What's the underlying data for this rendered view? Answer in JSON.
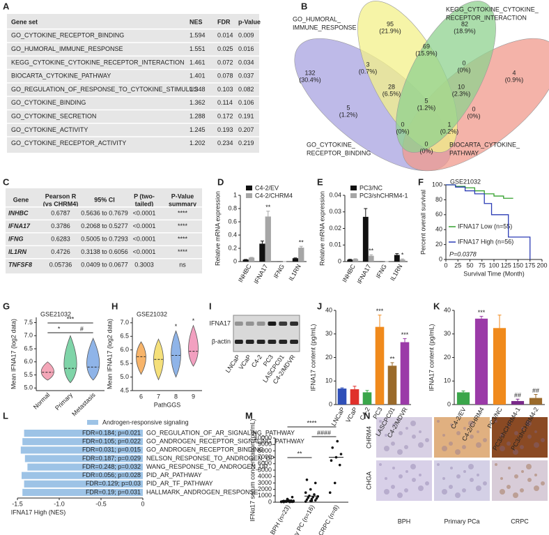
{
  "panels": [
    "A",
    "B",
    "C",
    "D",
    "E",
    "F",
    "G",
    "H",
    "I",
    "J",
    "K",
    "L",
    "M",
    "N"
  ],
  "table_a": {
    "panel": "A",
    "header": [
      "Gene set",
      "NES",
      "FDR",
      "p-Value"
    ],
    "rows": [
      [
        "GO_CYTOKINE_RECEPTOR_BINDING",
        "1.594",
        "0.014",
        "0.009"
      ],
      [
        "GO_HUMORAL_IMMUNE_RESPONSE",
        "1.551",
        "0.025",
        "0.016"
      ],
      [
        "KEGG_CYTOKINE_CYTOKINE_RECEPTOR_INTERACTION",
        "1.461",
        "0.072",
        "0.034"
      ],
      [
        "BIOCARTA_CYTOKINE_PATHWAY",
        "1.401",
        "0.078",
        "0.037"
      ],
      [
        "GO_REGULATION_OF_RESPONSE_TO_CYTOKINE_STIMULUS",
        "1.348",
        "0.103",
        "0.082"
      ],
      [
        "GO_CYTOKINE_BINDING",
        "1.362",
        "0.114",
        "0.106"
      ],
      [
        "GO_CYTOKINE_SECRETION",
        "1.288",
        "0.172",
        "0.191"
      ],
      [
        "GO_CYTOKINE_ACTIVITY",
        "1.245",
        "0.193",
        "0.207"
      ],
      [
        "GO_CYTOKINE_RECEPTOR_ACTIVITY",
        "1.202",
        "0.234",
        "0.219"
      ]
    ],
    "row_colors": [
      "#e4261c",
      "#e4261c",
      "#e4261c",
      "#e4261c",
      "#222222",
      "#222222",
      "#222222",
      "#222222",
      "#222222"
    ]
  },
  "venn_b": {
    "panel": "B",
    "sets": [
      {
        "lines": [
          "GO_HUMORAL_",
          "IMMUNE_RESPONSE"
        ],
        "color": "#f3f08a"
      },
      {
        "lines": [
          "KEGG_CYTOKINE_CYTOKINE_",
          "RECEPTOR_INTERACTION"
        ],
        "color": "#8fd18f"
      },
      {
        "lines": [
          "GO_CYTOKINE_",
          "RECEPTOR_BINDING"
        ],
        "color": "#a8a3e0"
      },
      {
        "lines": [
          "BIOCARTA_CYTOKINE_",
          "PATHWAY"
        ],
        "color": "#f09a8c"
      }
    ],
    "regions": [
      {
        "count": 95,
        "pct": "(21.9%)"
      },
      {
        "count": 82,
        "pct": "(18.9%)"
      },
      {
        "count": 132,
        "pct": "(30.4%)"
      },
      {
        "count": 4,
        "pct": "(0.9%)"
      },
      {
        "count": 69,
        "pct": "(15.9%)"
      },
      {
        "count": 3,
        "pct": "(0.7%)"
      },
      {
        "count": 0,
        "pct": "(0%)"
      },
      {
        "count": 28,
        "pct": "(6.5%)"
      },
      {
        "count": 10,
        "pct": "(2.3%)"
      },
      {
        "count": 5,
        "pct": "(1.2%)"
      },
      {
        "count": 5,
        "pct": "(1.2%)"
      },
      {
        "count": 0,
        "pct": "(0%)"
      },
      {
        "count": 1,
        "pct": "(0.2%)"
      },
      {
        "count": 0,
        "pct": "(0%)"
      },
      {
        "count": 0,
        "pct": "(0%)"
      }
    ]
  },
  "table_c": {
    "panel": "C",
    "header": [
      [
        "Gene"
      ],
      [
        "Pearson R",
        "(vs CHRM4)"
      ],
      [
        "95% CI"
      ],
      [
        "P (two-",
        "tailed)"
      ],
      [
        "P-Value",
        "summary"
      ]
    ],
    "rows": [
      [
        "INHBC",
        "0.6787",
        "0.5636 to 0.7679",
        "<0.0001",
        "****"
      ],
      [
        "IFNA17",
        "0.3786",
        "0.2068 to 0.5277",
        "<0.0001",
        "****"
      ],
      [
        "IFNG",
        "0.6283",
        "0.5005 to 0.7293",
        "<0.0001",
        "****"
      ],
      [
        "IL1RN",
        "0.4726",
        "0.3138 to 0.6056",
        "<0.0001",
        "****"
      ],
      [
        "TNFSF8",
        "0.05736",
        "0.0409 to 0.0677",
        "0.3003",
        "ns"
      ]
    ],
    "gene_colors": [
      "#e4261c",
      "#e4261c",
      "#e4261c",
      "#e4261c",
      "#222222"
    ]
  },
  "blot_i": {
    "panel": "I",
    "rows": [
      "IFNA17",
      "β-actin"
    ],
    "lanes": [
      "LNCaP",
      "VCaP",
      "C4-2",
      "PC3",
      "LASCPC01",
      "C4-2/MDVR"
    ]
  },
  "ihc_n": {
    "panel": "N",
    "rows": [
      "CHRM4",
      "CHGA"
    ],
    "columns": [
      "BPH",
      "Primary PCa",
      "CRPC"
    ]
  },
  "chart_data": [
    {
      "panel": "D",
      "type": "bar",
      "ylabel": "Relative mRNA expression",
      "categories": [
        "INHBC",
        "IFNA17",
        "IFNG",
        "IL1RN"
      ],
      "series": [
        {
          "name": "C4-2/EV",
          "color": "#111111",
          "values": [
            0.03,
            0.27,
            0,
            0.05
          ],
          "errors": [
            0.003,
            0.04,
            0,
            0.005
          ],
          "annotations": [
            null,
            null,
            null,
            null
          ]
        },
        {
          "name": "C4-2/CHRM4",
          "color": "#a6a6a6",
          "values": [
            0.06,
            0.68,
            0,
            0.21
          ],
          "errors": [
            0.004,
            0.08,
            0,
            0.02
          ],
          "annotations": [
            null,
            "**",
            null,
            "**"
          ]
        }
      ],
      "ylim": [
        0,
        1
      ],
      "yticks": [
        0,
        0.2,
        0.4,
        0.6,
        0.8,
        1
      ]
    },
    {
      "panel": "E",
      "type": "bar",
      "ylabel": "Relative mRNA expression",
      "categories": [
        "INHBC",
        "IFNA17",
        "IFNG",
        "IL1RN"
      ],
      "series": [
        {
          "name": "PC3/NC",
          "color": "#111111",
          "values": [
            0.0012,
            0.027,
            0,
            0.004
          ],
          "errors": [
            0.0002,
            0.005,
            0,
            0.0008
          ],
          "annotations": [
            null,
            null,
            null,
            null
          ]
        },
        {
          "name": "PC3/shCHRM4-1",
          "color": "#a6a6a6",
          "values": [
            0.0015,
            0.0035,
            0,
            0.0012
          ],
          "errors": [
            0.0002,
            0.0006,
            0,
            0.0004
          ],
          "annotations": [
            null,
            "**",
            null,
            "*"
          ]
        }
      ],
      "ylim": [
        0,
        0.04
      ],
      "yticks": [
        0,
        0.01,
        0.02,
        0.03,
        0.04
      ]
    },
    {
      "panel": "F",
      "type": "step",
      "title": "GSE21032",
      "xlabel": "Survival Time (Month)",
      "ylabel": "Percent overall survival",
      "annotation": "P=0.0378",
      "series": [
        {
          "name": "IFNA17 Low (n=55)",
          "color": "#33a02c",
          "x": [
            0,
            20,
            40,
            60,
            80,
            100,
            120,
            140
          ],
          "values": [
            100,
            98,
            96,
            92,
            88,
            85,
            82,
            82
          ]
        },
        {
          "name": "IFNA17 High (n=56)",
          "color": "#2b3bb5",
          "x": [
            0,
            20,
            40,
            60,
            80,
            95,
            130,
            175
          ],
          "values": [
            100,
            97,
            92,
            88,
            75,
            60,
            30,
            0
          ]
        }
      ],
      "xlim": [
        0,
        200
      ],
      "xticks": [
        0,
        25,
        50,
        75,
        100,
        125,
        150,
        175,
        200
      ],
      "ylim": [
        0,
        100
      ],
      "yticks": [
        0,
        20,
        40,
        60,
        80,
        100
      ]
    },
    {
      "panel": "G",
      "type": "violin",
      "title": "GSE21032",
      "ylabel": "Mean IFNA17 (log2 data)",
      "categories": [
        "Normal",
        "Primary",
        "Metastasis"
      ],
      "colors": [
        "#f4a6b8",
        "#7fd4a8",
        "#8fb4e8"
      ],
      "mins": [
        5.3,
        5.2,
        5.3
      ],
      "medians": [
        5.6,
        5.75,
        5.8
      ],
      "maxs": [
        6.0,
        7.0,
        6.9
      ],
      "comparisons": [
        {
          "from": "Normal",
          "to": "Primary",
          "label": "*"
        },
        {
          "from": "Primary",
          "to": "Metastasis",
          "label": "#"
        },
        {
          "from": "Normal",
          "to": "Metastasis",
          "label": "***"
        }
      ],
      "ylim": [
        4.9,
        7.7
      ],
      "yticks": [
        {
          "value": 5,
          "label": "5.0"
        },
        5.5,
        {
          "value": 6,
          "label": "6.0"
        },
        6.5,
        {
          "value": 7,
          "label": "7.0"
        },
        7.5
      ]
    },
    {
      "panel": "H",
      "type": "violin",
      "title": "GSE21032",
      "ylabel": "Mean IFNA17 (log2 data)",
      "xlabel": "PathGGS",
      "categories": [
        "6",
        "7",
        "8",
        "9"
      ],
      "colors": [
        "#f7b46a",
        "#f5e07a",
        "#8fb4e8",
        "#f2a0c0"
      ],
      "mins": [
        5.1,
        4.9,
        5.0,
        5.4
      ],
      "medians": [
        5.75,
        5.65,
        5.8,
        5.95
      ],
      "maxs": [
        6.3,
        6.4,
        6.7,
        6.9
      ],
      "annotations": [
        null,
        null,
        "*",
        "*"
      ],
      "ylim": [
        4.5,
        7.2
      ],
      "yticks": [
        4.5,
        {
          "value": 5,
          "label": "5.0"
        },
        5.5,
        {
          "value": 6,
          "label": "6.0"
        },
        6.5,
        {
          "value": 7,
          "label": "7.0"
        }
      ]
    },
    {
      "panel": "J",
      "type": "bar",
      "ylabel": "IFNA17 content (pg/mL)",
      "categories": [
        "LNCaP",
        "VCaP",
        "C4-2",
        "PC3",
        "LASCPC01",
        "C4-2/MDVR"
      ],
      "colors": [
        "#2f4fb8",
        "#e0302a",
        "#3aa64a",
        "#f08a1c",
        "#9a6a2a",
        "#9b3aa8"
      ],
      "values": [
        6.8,
        6.5,
        5.2,
        33,
        16.5,
        26.5
      ],
      "errors": [
        0.3,
        1.3,
        0.8,
        5,
        1.3,
        1.5
      ],
      "annotations": [
        null,
        null,
        null,
        "***",
        "**",
        "***"
      ],
      "ylim": [
        0,
        40
      ],
      "yticks": [
        0,
        10,
        20,
        30,
        40
      ]
    },
    {
      "panel": "K",
      "type": "bar",
      "ylabel": "IFNA17 content (pg/mL)",
      "categories": [
        "C4-2/EV",
        "C4-2/CHRM4",
        "PC3/NC",
        "PC3/shCHRM4-1",
        "PC3/shCHRM4-2"
      ],
      "colors": [
        "#3aa64a",
        "#9b3aa8",
        "#f08a1c",
        "#7a2a8a",
        "#9a6a2a"
      ],
      "values": [
        5.2,
        36.5,
        32.5,
        1.5,
        2.8
      ],
      "errors": [
        0.6,
        1,
        5.5,
        0.8,
        1.5
      ],
      "annotations": [
        null,
        "***",
        null,
        "##",
        "##"
      ],
      "ylim": [
        0,
        40
      ],
      "yticks": [
        0,
        10,
        20,
        30,
        40
      ]
    },
    {
      "panel": "L",
      "type": "hbar",
      "legend": "Androgen-responsive signaling",
      "color": "#9dc3e6",
      "xlabel": "IFNA17 High (NES)",
      "categories": [
        "GO_REGULATION_OF_AR_SIGNALING_PATHWAY",
        "GO_ANDROGEN_RECEPTOR_SIGNALING_PATHWAY",
        "GO_ANDROGEN_RECEPTOR_BINDING",
        "NELSON_RESPONSE_TO_ANDROGEN_UP",
        "WANG_RESPONSE_TO_ANDROGEN_UP",
        "PID_AR_PATHWAY",
        "PID_AR_TF_PATHWAY",
        "HALLMARK_ANDROGEN_RESPONSE"
      ],
      "values": [
        -1.42,
        -1.44,
        -1.46,
        -1.41,
        -1.38,
        -1.45,
        -1.42,
        -1.44
      ],
      "bar_labels": [
        "FDR=0.184; p=0.021",
        "FDR=0.105; p=0.022",
        "FDR=0.031; p=0.015",
        "FDR=0.187; p=0.029",
        "FDR=0.248; p=0.032",
        "FDR=0.056; p=0.028",
        "FDR=0.129; p=0.03",
        "FDR=0.19; p=0.031"
      ],
      "xlim": [
        -1.5,
        0
      ],
      "xticks": [
        -1.5,
        {
          "value": -1,
          "label": "-1.0"
        },
        -0.5,
        0
      ]
    },
    {
      "panel": "M",
      "type": "strip",
      "ylabel": "IFNα17 serum concentration (pg/mL)",
      "categories": [
        "BPH (n=23)",
        "Primary PC (n=16)",
        "CRPC (n=8)"
      ],
      "values": [
        [
          50,
          80,
          100,
          120,
          150,
          60,
          200,
          300,
          90,
          110,
          40,
          70,
          180,
          250,
          130,
          500,
          800,
          30,
          160,
          210,
          140,
          95,
          75
        ],
        [
          100,
          200,
          300,
          400,
          500,
          600,
          700,
          800,
          900,
          1000,
          1200,
          1500,
          2000,
          3000,
          3500,
          250
        ],
        [
          1500,
          3000,
          5800,
          6500,
          7000,
          7500,
          8500,
          9500
        ]
      ],
      "means": [
        180,
        950,
        7000
      ],
      "comparisons": [
        {
          "from": "BPH (n=23)",
          "to": "Primary PC (n=16)",
          "label": "**"
        },
        {
          "from": "Primary PC (n=16)",
          "to": "CRPC (n=8)",
          "label": "####"
        },
        {
          "from": "BPH (n=23)",
          "to": "CRPC (n=8)",
          "label": "****"
        }
      ],
      "ylim": [
        0,
        10000
      ],
      "yticks": [
        0,
        1000,
        2000,
        3000,
        4000,
        5000,
        6000,
        7000,
        8000,
        9000,
        10000
      ]
    }
  ]
}
